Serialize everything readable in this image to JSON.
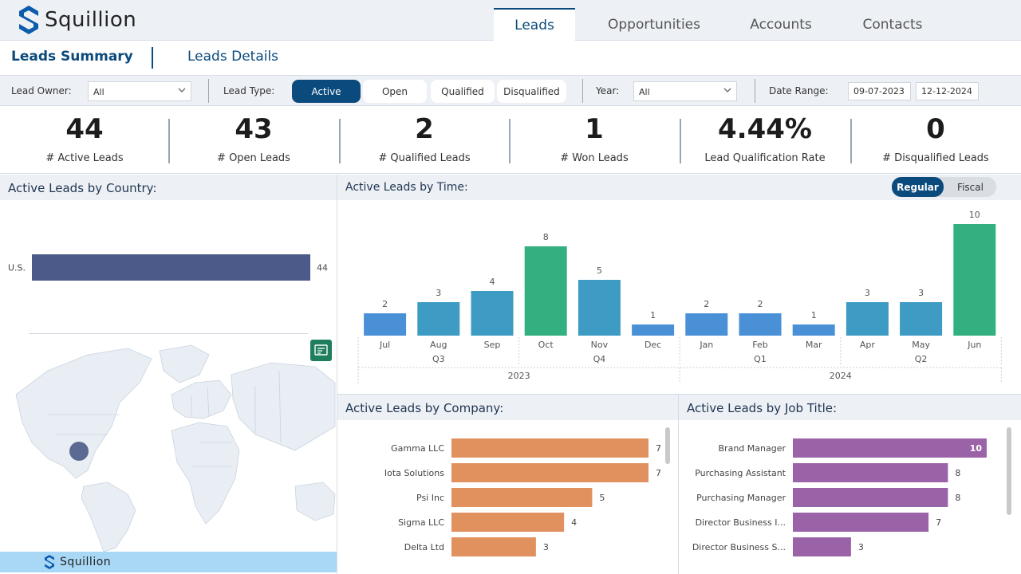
{
  "app": {
    "brand": "Squillion"
  },
  "nav": {
    "tabs": [
      "Leads",
      "Opportunities",
      "Accounts",
      "Contacts"
    ],
    "active": "Leads"
  },
  "subnav": {
    "tabs": [
      "Leads Summary",
      "Leads Details"
    ]
  },
  "filters": {
    "lead_owner_label": "Lead Owner:",
    "lead_owner_value": "All",
    "lead_type_label": "Lead Type:",
    "lead_types": [
      "Active",
      "Open",
      "Qualified",
      "Disqualified"
    ],
    "lead_type_selected": "Active",
    "year_label": "Year:",
    "year_value": "All",
    "date_range_label": "Date Range:",
    "date_from": "09-07-2023",
    "date_to": "12-12-2024"
  },
  "kpis": [
    {
      "value": "44",
      "label": "# Active Leads"
    },
    {
      "value": "43",
      "label": "# Open Leads"
    },
    {
      "value": "2",
      "label": "# Qualified Leads"
    },
    {
      "value": "1",
      "label": "# Won Leads"
    },
    {
      "value": "4.44%",
      "label": "Lead Qualification Rate"
    },
    {
      "value": "0",
      "label": "# Disqualified Leads"
    }
  ],
  "panels": {
    "country": "Active Leads by Country:",
    "time": "Active Leads by Time:",
    "company": "Active Leads by Company:",
    "job_title": "Active Leads by Job Title:"
  },
  "time_toggle": {
    "options": [
      "Regular",
      "Fiscal"
    ],
    "selected": "Regular"
  },
  "colors": {
    "primary": "#0b4a7c",
    "country_bar": "#4b5a88",
    "company_bar": "#e0915e",
    "job_bar": "#9a63a8",
    "time_blue": "#4a90d6",
    "time_teal": "#3d9bc4",
    "time_green": "#33b07f",
    "map_dot": "#5a6a93"
  },
  "icons": {
    "export": "report-icon",
    "map": "world-map"
  },
  "chart_data": [
    {
      "type": "bar",
      "orientation": "horizontal",
      "title": "Active Leads by Country:",
      "categories": [
        "U.S."
      ],
      "values": [
        44
      ],
      "xlim": [
        0,
        44
      ]
    },
    {
      "type": "bar",
      "title": "Active Leads by Time:",
      "categories": [
        "Jul",
        "Aug",
        "Sep",
        "Oct",
        "Nov",
        "Dec",
        "Jan",
        "Feb",
        "Mar",
        "Apr",
        "May",
        "Jun"
      ],
      "values": [
        2,
        3,
        4,
        8,
        5,
        1,
        2,
        2,
        1,
        3,
        3,
        10
      ],
      "quarters": [
        {
          "label": "Q3",
          "span": [
            0,
            2
          ]
        },
        {
          "label": "Q4",
          "span": [
            3,
            5
          ]
        },
        {
          "label": "Q1",
          "span": [
            6,
            8
          ]
        },
        {
          "label": "Q2",
          "span": [
            9,
            11
          ]
        }
      ],
      "years": [
        {
          "label": "2023",
          "span": [
            0,
            5
          ]
        },
        {
          "label": "2024",
          "span": [
            6,
            11
          ]
        }
      ],
      "ylim": [
        0,
        10
      ]
    },
    {
      "type": "bar",
      "orientation": "horizontal",
      "title": "Active Leads by Company:",
      "categories": [
        "Gamma LLC",
        "Iota Solutions",
        "Psi Inc",
        "Sigma LLC",
        "Delta Ltd"
      ],
      "values": [
        7,
        7,
        5,
        4,
        3
      ],
      "xlim": [
        0,
        7
      ]
    },
    {
      "type": "bar",
      "orientation": "horizontal",
      "title": "Active Leads by Job Title:",
      "categories": [
        "Brand Manager",
        "Purchasing Assistant",
        "Purchasing Manager",
        "Director Business I...",
        "Director Business S..."
      ],
      "values": [
        10,
        8,
        8,
        7,
        3
      ],
      "xlim": [
        0,
        10
      ]
    }
  ]
}
